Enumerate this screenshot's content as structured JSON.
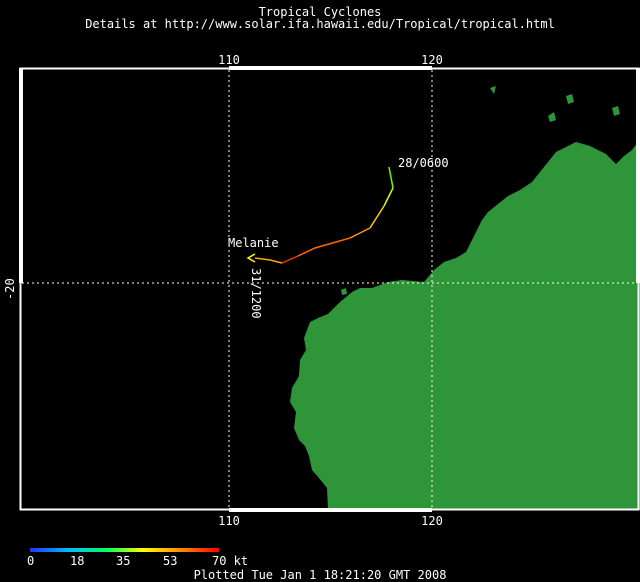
{
  "header": {
    "title": "Tropical Cyclones",
    "subtitle": "Details at http://www.solar.ifa.hawaii.edu/Tropical/tropical.html"
  },
  "map": {
    "lon_ticks": [
      "110",
      "120"
    ],
    "lat_ticks": [
      "-20"
    ],
    "land_color": "#2e9638",
    "ocean_color": "#000000",
    "gridline_style": "dotted white"
  },
  "storm": {
    "name": "Melanie",
    "start_label": "28/0600",
    "end_label": "31/1200"
  },
  "legend": {
    "values": [
      "0",
      "18",
      "35",
      "53",
      "70 kt"
    ],
    "colors": [
      "#2233ff",
      "#00bbff",
      "#00ff66",
      "#ffff00",
      "#ff8800",
      "#ff0000"
    ]
  },
  "footer": {
    "plotted": "Plotted Tue Jan 1 18:21:20 GMT 2008"
  }
}
